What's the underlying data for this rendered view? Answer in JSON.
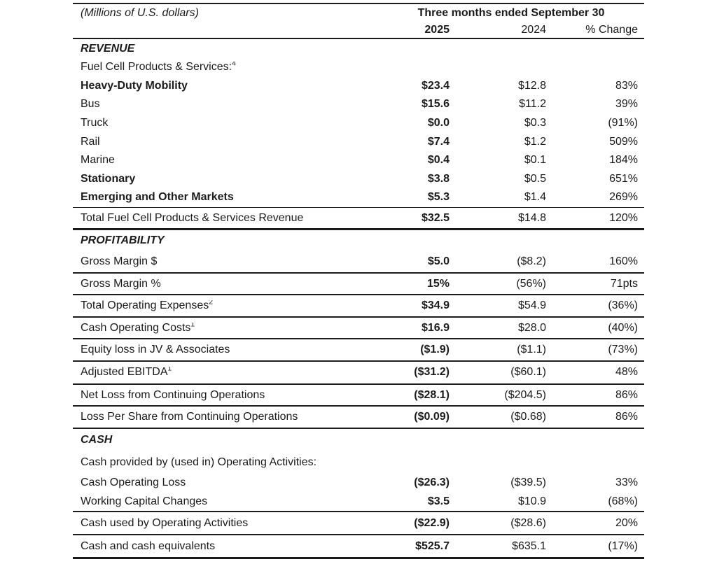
{
  "colors": {
    "text": "#1b1b1b",
    "rule": "#1b1b1b",
    "background": "#ffffff"
  },
  "header": {
    "unit_label": "(Millions of U.S. dollars)",
    "period_label": "Three months ended September 30",
    "col_2025": "2025",
    "col_2024": "2024",
    "col_change": "% Change"
  },
  "rows": [
    {
      "type": "section",
      "group": "revenue",
      "label": "REVENUE"
    },
    {
      "type": "item",
      "group": "revenue",
      "label": "Fuel Cell Products & Services:",
      "sup": "4",
      "indent": 0,
      "bold_label": false,
      "v2025": "",
      "v2024": "",
      "change": ""
    },
    {
      "type": "item",
      "group": "revenue",
      "label": "Heavy-Duty Mobility",
      "indent": 0,
      "bold_label": true,
      "v2025": "$23.4",
      "v2024": "$12.8",
      "change": "83%"
    },
    {
      "type": "item",
      "group": "revenue",
      "label": "Bus",
      "indent": 2,
      "bold_label": false,
      "v2025": "$15.6",
      "v2024": "$11.2",
      "change": "39%"
    },
    {
      "type": "item",
      "group": "revenue",
      "label": "Truck",
      "indent": 2,
      "bold_label": false,
      "v2025": "$0.0",
      "v2024": "$0.3",
      "change": "(91%)"
    },
    {
      "type": "item",
      "group": "revenue",
      "label": "Rail",
      "indent": 2,
      "bold_label": false,
      "v2025": "$7.4",
      "v2024": "$1.2",
      "change": "509%"
    },
    {
      "type": "item",
      "group": "revenue",
      "label": "Marine",
      "indent": 2,
      "bold_label": false,
      "v2025": "$0.4",
      "v2024": "$0.1",
      "change": "184%"
    },
    {
      "type": "item",
      "group": "revenue",
      "label": "Stationary",
      "indent": 0,
      "bold_label": true,
      "v2025": "$3.8",
      "v2024": "$0.5",
      "change": "651%"
    },
    {
      "type": "item",
      "group": "revenue",
      "label": "Emerging and Other Markets",
      "indent": 0,
      "bold_label": true,
      "v2025": "$5.3",
      "v2024": "$1.4",
      "change": "269%"
    },
    {
      "type": "rule",
      "weight": "thin"
    },
    {
      "type": "total",
      "group": "revenue",
      "label": "Total Fuel Cell Products & Services Revenue",
      "indent": 0,
      "bold_label": false,
      "v2025": "$32.5",
      "v2024": "$14.8",
      "change": "120%"
    },
    {
      "type": "rule",
      "weight": "thick"
    },
    {
      "type": "section",
      "group": "profit",
      "label": "PROFITABILITY"
    },
    {
      "type": "item",
      "group": "profit",
      "label": "Gross Margin $",
      "indent": 0,
      "bold_label": false,
      "v2025": "$5.0",
      "v2024": "($8.2)",
      "change": "160%"
    },
    {
      "type": "rule",
      "weight": "mid"
    },
    {
      "type": "item",
      "group": "profit",
      "label": "Gross Margin %",
      "indent": 0,
      "bold_label": false,
      "v2025": "15%",
      "v2024": "(56%)",
      "change": "71pts"
    },
    {
      "type": "rule",
      "weight": "mid"
    },
    {
      "type": "item",
      "group": "profit",
      "label": "Total Operating Expenses",
      "sup": "2",
      "indent": 0,
      "bold_label": false,
      "v2025": "$34.9",
      "v2024": "$54.9",
      "change": "(36%)"
    },
    {
      "type": "rule",
      "weight": "mid"
    },
    {
      "type": "item",
      "group": "profit",
      "label": "Cash Operating Costs",
      "sup": "1",
      "indent": 0,
      "bold_label": false,
      "v2025": "$16.9",
      "v2024": "$28.0",
      "change": "(40%)"
    },
    {
      "type": "rule",
      "weight": "mid"
    },
    {
      "type": "item",
      "group": "profit",
      "label": "Equity loss in JV & Associates",
      "indent": 0,
      "bold_label": false,
      "v2025": "($1.9)",
      "v2024": "($1.1)",
      "change": "(73%)"
    },
    {
      "type": "rule",
      "weight": "mid"
    },
    {
      "type": "item",
      "group": "profit",
      "label": "Adjusted EBITDA",
      "sup": "1",
      "indent": 0,
      "bold_label": false,
      "tall": true,
      "v2025": "($31.2)",
      "v2024": "($60.1)",
      "change": "48%"
    },
    {
      "type": "rule",
      "weight": "mid"
    },
    {
      "type": "item",
      "group": "profit",
      "label": "Net Loss from Continuing Operations",
      "indent": 0,
      "bold_label": false,
      "v2025": "($28.1)",
      "v2024": "($204.5)",
      "change": "86%"
    },
    {
      "type": "rule",
      "weight": "mid"
    },
    {
      "type": "item",
      "group": "profit",
      "label": "Loss Per Share from Continuing Operations",
      "indent": 0,
      "bold_label": false,
      "v2025": "($0.09)",
      "v2024": "($0.68)",
      "change": "86%"
    },
    {
      "type": "rule",
      "weight": "end"
    },
    {
      "type": "section",
      "group": "cash",
      "label": "CASH"
    },
    {
      "type": "item",
      "group": "cash",
      "label": "Cash provided by (used in) Operating Activities:",
      "indent": 0,
      "bold_label": false,
      "tall": true,
      "v2025": "",
      "v2024": "",
      "change": ""
    },
    {
      "type": "item",
      "group": "cash",
      "label": "Cash Operating Loss",
      "indent": 2,
      "bold_label": false,
      "v2025": "($26.3)",
      "v2024": "($39.5)",
      "change": "33%"
    },
    {
      "type": "item",
      "group": "cash",
      "label": "Working Capital Changes",
      "indent": 2,
      "bold_label": false,
      "v2025": "$3.5",
      "v2024": "$10.9",
      "change": "(68%)"
    },
    {
      "type": "rule",
      "weight": "mid"
    },
    {
      "type": "item",
      "group": "cash",
      "label": "Cash used by Operating Activities",
      "indent": 1,
      "bold_label": false,
      "tall": true,
      "v2025": "($22.9)",
      "v2024": "($28.6)",
      "change": "20%"
    },
    {
      "type": "rule",
      "weight": "mid"
    },
    {
      "type": "item",
      "group": "cash",
      "label": "Cash and cash equivalents",
      "indent": 0,
      "bold_label": false,
      "tall": true,
      "v2025": "$525.7",
      "v2024": "$635.1",
      "change": "(17%)"
    },
    {
      "type": "rule",
      "weight": "end"
    }
  ]
}
